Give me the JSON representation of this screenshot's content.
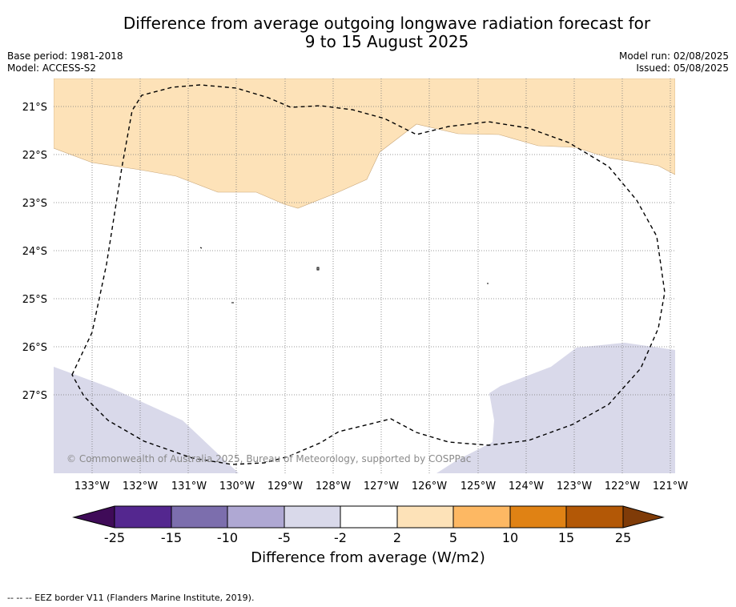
{
  "title": {
    "line1": "Difference from average outgoing longwave radiation forecast for",
    "line2": "9 to 15 August 2025"
  },
  "meta": {
    "base_period": "Base period: 1981-2018",
    "model": "Model: ACCESS-S2",
    "model_run": "Model run: 02/08/2025",
    "issued": "Issued: 05/08/2025"
  },
  "map": {
    "lat_labels": [
      "21°S",
      "22°S",
      "23°S",
      "24°S",
      "25°S",
      "26°S",
      "27°S"
    ],
    "lon_labels": [
      "133°W",
      "132°W",
      "131°W",
      "130°W",
      "129°W",
      "128°W",
      "127°W",
      "126°W",
      "125°W",
      "124°W",
      "123°W",
      "122°W",
      "121°W"
    ],
    "copyright": "© Commonwealth of Australia 2025, Bureau of Meteorology, supported by COSPPac",
    "colors": {
      "positive_2_5": "#fde2b8",
      "negative_2_5": "#d9d9ea",
      "land_border": "#000000"
    }
  },
  "colorbar": {
    "ticks": [
      "-25",
      "-15",
      "-10",
      "-5",
      "-2",
      "2",
      "5",
      "10",
      "15",
      "25"
    ],
    "colors": [
      "#3f0b58",
      "#54278f",
      "#7c6ead",
      "#afa8d3",
      "#d9d9ea",
      "#ffffff",
      "#fde2b8",
      "#fdb863",
      "#e08214",
      "#b35806",
      "#7f3b08"
    ],
    "label": "Difference from average (W/m2)"
  },
  "footer": "--  --  -- EEZ border V11 (Flanders Marine Institute, 2019)."
}
